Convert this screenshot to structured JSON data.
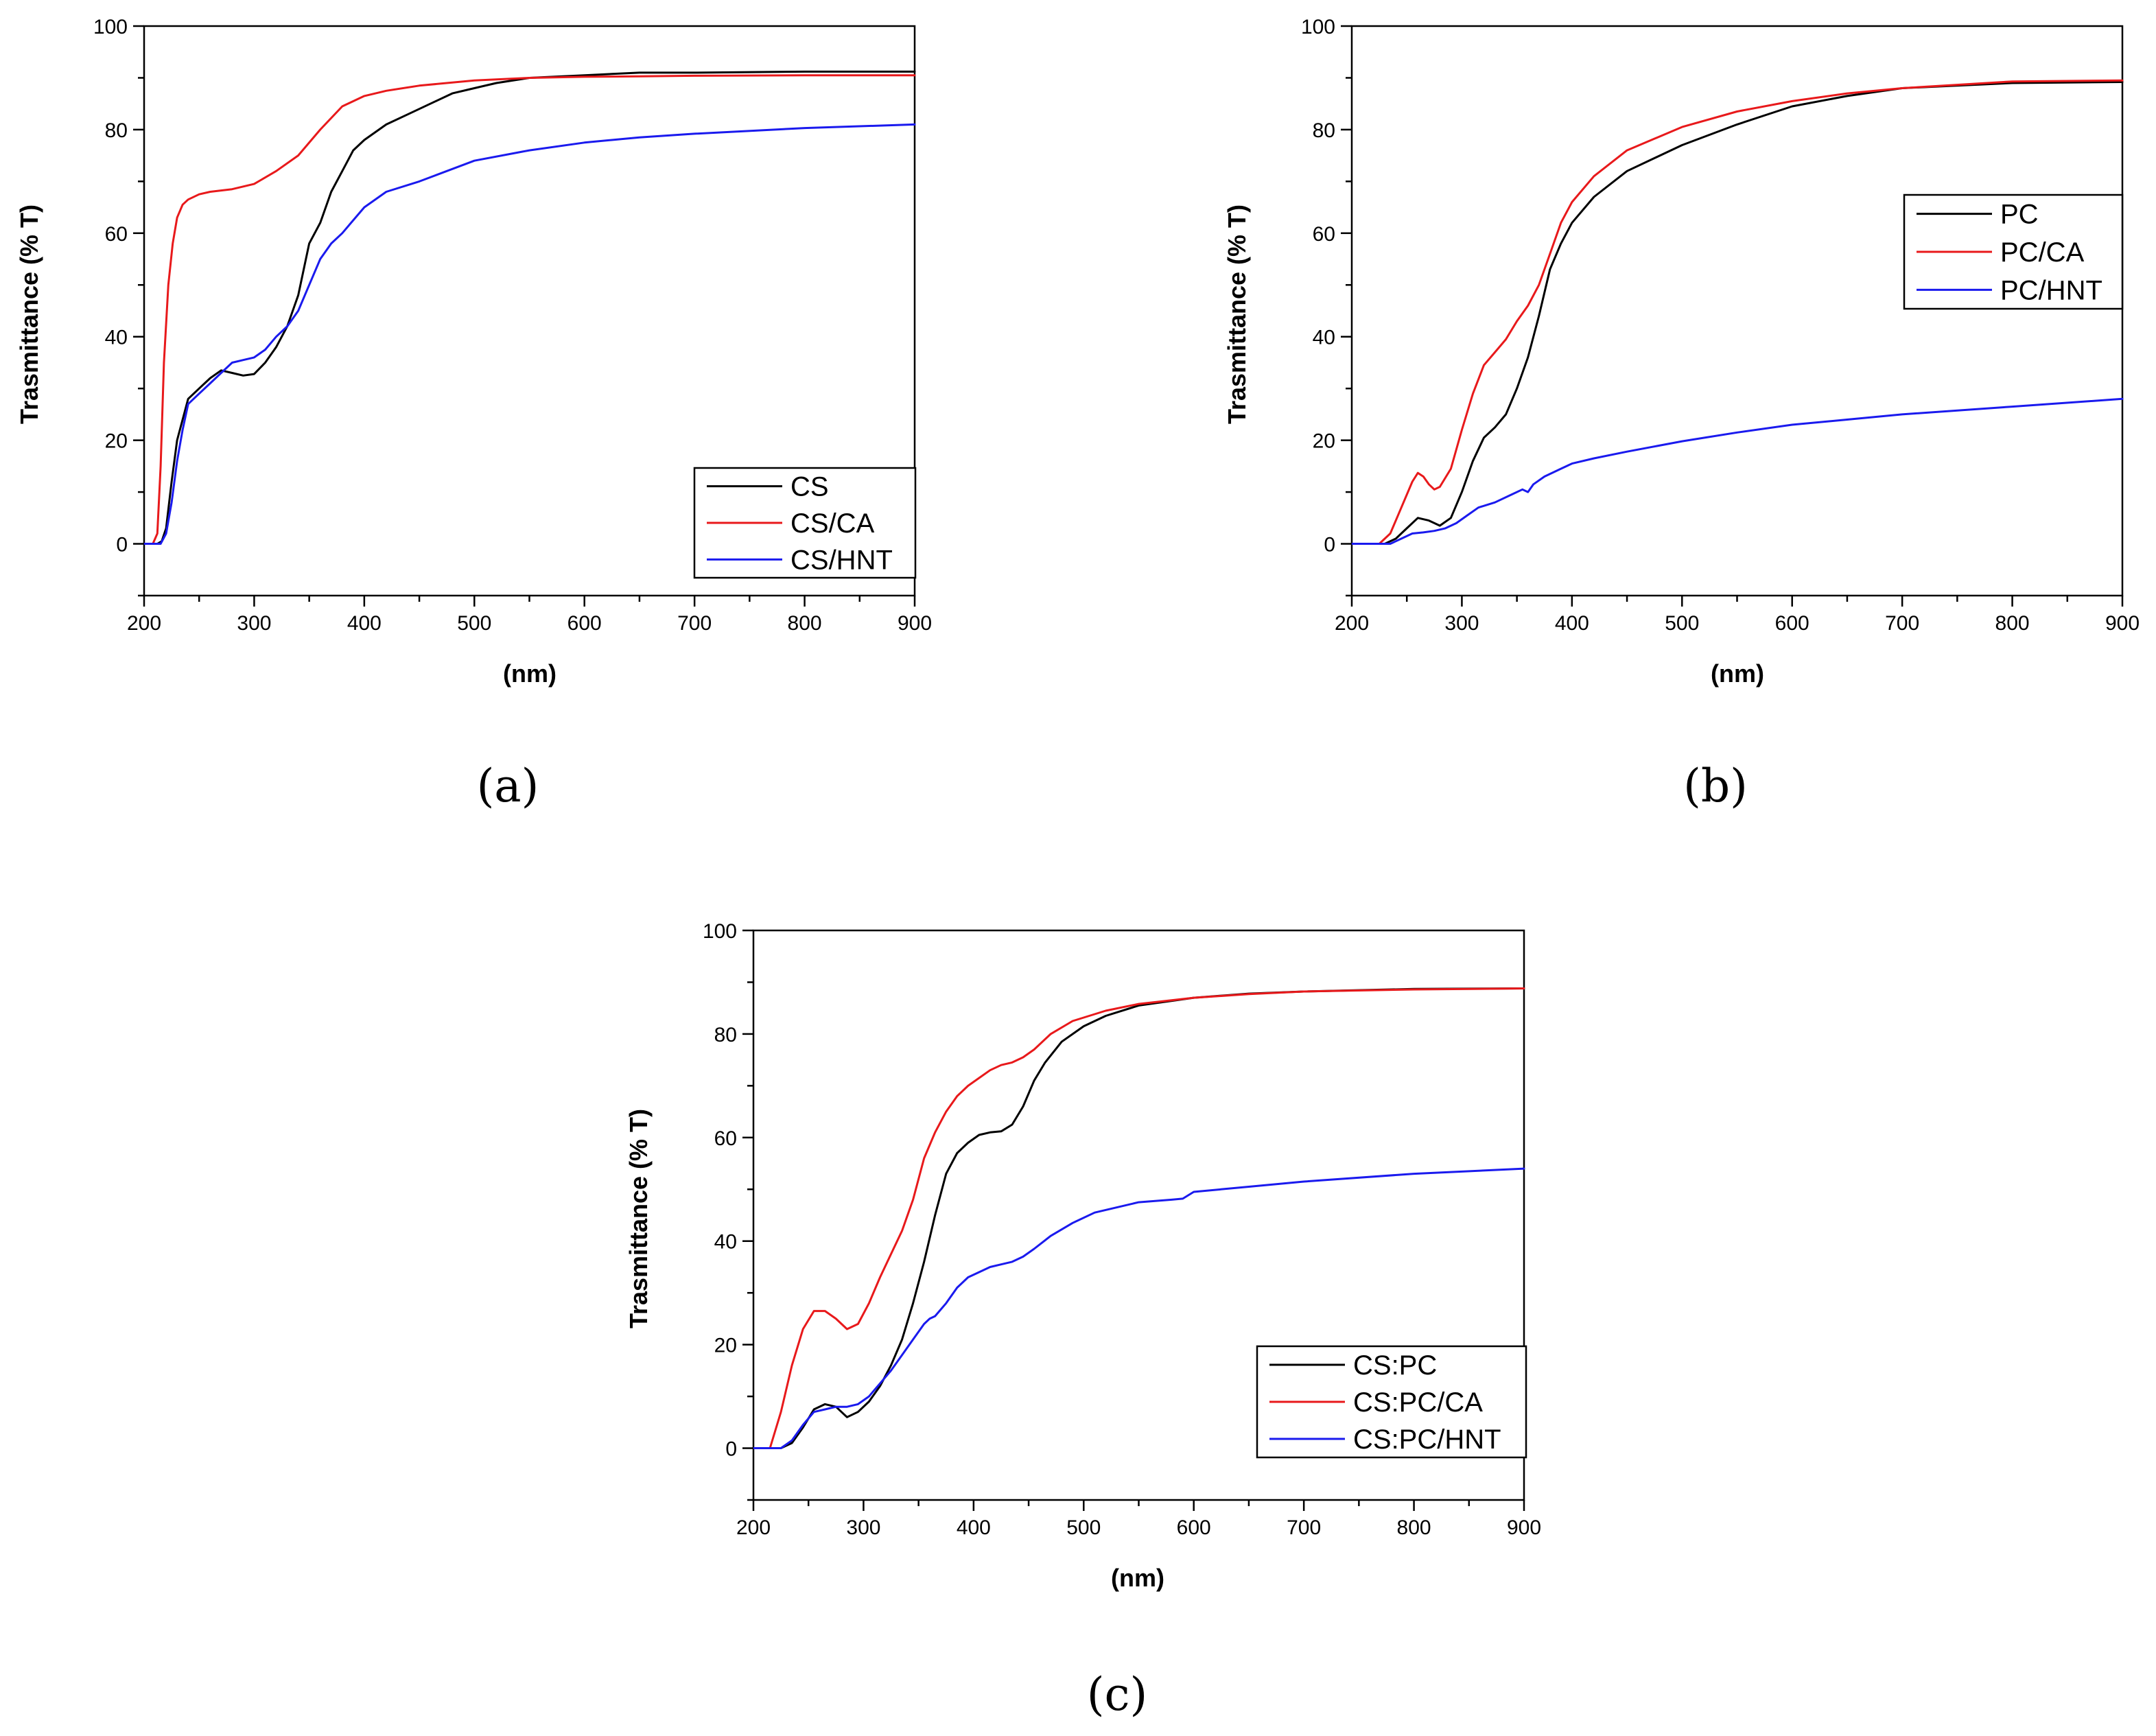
{
  "figure": {
    "panels": [
      "a",
      "b",
      "c"
    ]
  },
  "colors": {
    "black": "#000000",
    "red": "#e8191b",
    "blue": "#1a1aee"
  },
  "chart_data": [
    {
      "id": "a",
      "type": "line",
      "caption": "(a)",
      "xlabel": "(nm)",
      "ylabel": "Trasmittance (% T)",
      "xlim": [
        200,
        900
      ],
      "ylim": [
        -10,
        100
      ],
      "xticks": [
        "200",
        "300",
        "400",
        "500",
        "600",
        "700",
        "800",
        "900"
      ],
      "yticks": [
        "0",
        "20",
        "40",
        "60",
        "80",
        "100"
      ],
      "legend_position": "bottom-right",
      "series": [
        {
          "name": "CS",
          "color": "#000000",
          "x": [
            200,
            212,
            216,
            220,
            225,
            230,
            240,
            250,
            260,
            270,
            280,
            290,
            300,
            310,
            320,
            330,
            340,
            350,
            360,
            370,
            380,
            390,
            400,
            420,
            440,
            460,
            480,
            500,
            520,
            550,
            600,
            650,
            700,
            800,
            900
          ],
          "y": [
            0,
            0,
            0.5,
            3,
            12,
            20,
            28,
            30,
            32,
            33.5,
            33,
            32.5,
            32.8,
            35,
            38,
            42,
            48,
            58,
            62,
            68,
            72,
            76,
            78,
            81,
            83,
            85,
            87,
            88,
            89,
            90,
            90.5,
            91,
            91,
            91.2,
            91.2
          ]
        },
        {
          "name": "CS/CA",
          "color": "#e8191b",
          "x": [
            200,
            208,
            212,
            215,
            218,
            222,
            226,
            230,
            235,
            240,
            250,
            260,
            280,
            300,
            320,
            340,
            360,
            380,
            400,
            420,
            450,
            500,
            550,
            600,
            650,
            700,
            800,
            900
          ],
          "y": [
            0,
            0,
            2,
            15,
            35,
            50,
            58,
            63,
            65.5,
            66.5,
            67.5,
            68,
            68.5,
            69.5,
            72,
            75,
            80,
            84.5,
            86.5,
            87.5,
            88.5,
            89.5,
            90,
            90.2,
            90.3,
            90.4,
            90.5,
            90.5
          ]
        },
        {
          "name": "CS/HNT",
          "color": "#1a1aee",
          "x": [
            200,
            215,
            220,
            225,
            230,
            235,
            240,
            250,
            260,
            270,
            280,
            290,
            300,
            310,
            320,
            330,
            340,
            350,
            360,
            370,
            380,
            400,
            420,
            450,
            500,
            550,
            600,
            650,
            700,
            800,
            900
          ],
          "y": [
            0,
            0,
            2,
            8,
            16,
            22,
            27,
            29,
            31,
            33,
            35,
            35.5,
            36,
            37.5,
            40,
            42,
            45,
            50,
            55,
            58,
            60,
            65,
            68,
            70,
            74,
            76,
            77.5,
            78.5,
            79.2,
            80.3,
            81
          ]
        }
      ]
    },
    {
      "id": "b",
      "type": "line",
      "caption": "(b)",
      "xlabel": "(nm)",
      "ylabel": "Trasmittance (% T)",
      "xlim": [
        200,
        900
      ],
      "ylim": [
        -10,
        100
      ],
      "xticks": [
        "200",
        "300",
        "400",
        "500",
        "600",
        "700",
        "800",
        "900"
      ],
      "yticks": [
        "0",
        "20",
        "40",
        "60",
        "80",
        "100"
      ],
      "legend_position": "top-right",
      "series": [
        {
          "name": "PC",
          "color": "#000000",
          "x": [
            200,
            230,
            240,
            250,
            260,
            270,
            280,
            290,
            300,
            310,
            320,
            330,
            340,
            350,
            360,
            370,
            380,
            390,
            400,
            420,
            450,
            500,
            550,
            600,
            650,
            700,
            800,
            900
          ],
          "y": [
            0,
            0,
            1,
            3,
            5,
            4.5,
            3.5,
            5,
            10,
            16,
            20.5,
            22.5,
            25,
            30,
            36,
            44,
            53,
            58,
            62,
            67,
            72,
            77,
            81,
            84.5,
            86.5,
            88,
            89,
            89.2
          ]
        },
        {
          "name": "PC/CA",
          "color": "#e8191b",
          "x": [
            200,
            225,
            235,
            245,
            255,
            260,
            265,
            270,
            275,
            280,
            290,
            300,
            310,
            320,
            330,
            340,
            350,
            360,
            370,
            380,
            390,
            400,
            420,
            450,
            500,
            550,
            600,
            650,
            700,
            800,
            900
          ],
          "y": [
            0,
            0,
            2,
            7,
            12,
            13.7,
            13,
            11.5,
            10.5,
            11,
            14.5,
            22,
            29,
            34.5,
            37,
            39.5,
            43,
            46,
            50,
            56,
            62,
            66,
            71,
            76,
            80.5,
            83.5,
            85.5,
            87,
            88,
            89.3,
            89.5
          ]
        },
        {
          "name": "PC/HNT",
          "color": "#1a1aee",
          "x": [
            200,
            235,
            245,
            255,
            265,
            275,
            285,
            295,
            305,
            315,
            330,
            345,
            355,
            360,
            365,
            375,
            390,
            400,
            420,
            450,
            500,
            550,
            600,
            650,
            700,
            800,
            900
          ],
          "y": [
            0,
            0,
            1,
            2,
            2.2,
            2.5,
            3,
            4,
            5.5,
            7,
            8,
            9.5,
            10.5,
            10,
            11.5,
            13,
            14.5,
            15.5,
            16.5,
            17.8,
            19.8,
            21.5,
            23,
            24,
            25,
            26.5,
            28
          ]
        }
      ]
    },
    {
      "id": "c",
      "type": "line",
      "caption": "(c)",
      "xlabel": "(nm)",
      "ylabel": "Trasmittance (% T)",
      "xlim": [
        200,
        900
      ],
      "ylim": [
        -10,
        100
      ],
      "xticks": [
        "200",
        "300",
        "400",
        "500",
        "600",
        "700",
        "800",
        "900"
      ],
      "yticks": [
        "0",
        "20",
        "40",
        "60",
        "80",
        "100"
      ],
      "legend_position": "bottom-right",
      "series": [
        {
          "name": "CS:PC",
          "color": "#000000",
          "x": [
            200,
            225,
            235,
            245,
            255,
            265,
            275,
            285,
            295,
            305,
            315,
            325,
            335,
            345,
            355,
            365,
            375,
            385,
            395,
            405,
            415,
            425,
            435,
            445,
            455,
            465,
            480,
            500,
            520,
            550,
            600,
            650,
            700,
            800,
            900
          ],
          "y": [
            0,
            0,
            1,
            4,
            7.5,
            8.5,
            8,
            6,
            7,
            9,
            12,
            16,
            21,
            28,
            36,
            45,
            53,
            57,
            59,
            60.5,
            61,
            61.2,
            62.5,
            66,
            71,
            74.5,
            78.5,
            81.5,
            83.5,
            85.5,
            87,
            87.8,
            88.2,
            88.7,
            88.8
          ]
        },
        {
          "name": "CS:PC/CA",
          "color": "#e8191b",
          "x": [
            200,
            215,
            225,
            235,
            245,
            255,
            265,
            275,
            285,
            295,
            305,
            315,
            325,
            335,
            345,
            355,
            365,
            375,
            385,
            395,
            405,
            415,
            425,
            435,
            445,
            455,
            470,
            490,
            520,
            550,
            600,
            650,
            700,
            800,
            900
          ],
          "y": [
            0,
            0,
            7,
            16,
            23,
            26.5,
            26.5,
            25,
            23,
            24,
            28,
            33,
            37.5,
            42,
            48,
            56,
            61,
            65,
            68,
            70,
            71.5,
            73,
            74,
            74.5,
            75.5,
            77,
            80,
            82.5,
            84.5,
            85.8,
            87,
            87.7,
            88.2,
            88.6,
            88.8
          ]
        },
        {
          "name": "CS:PC/HNT",
          "color": "#1a1aee",
          "x": [
            200,
            225,
            235,
            245,
            255,
            265,
            275,
            285,
            295,
            305,
            315,
            325,
            335,
            345,
            355,
            360,
            365,
            375,
            385,
            395,
            405,
            415,
            425,
            435,
            445,
            455,
            470,
            490,
            510,
            550,
            580,
            590,
            600,
            650,
            700,
            800,
            900
          ],
          "y": [
            0,
            0,
            1.5,
            4.5,
            7,
            7.5,
            8,
            8,
            8.5,
            10,
            12.5,
            15,
            18,
            21,
            24,
            25,
            25.5,
            28,
            31,
            33,
            34,
            35,
            35.5,
            36,
            37,
            38.5,
            41,
            43.5,
            45.5,
            47.5,
            48,
            48.2,
            49.5,
            50.5,
            51.5,
            53,
            54
          ]
        }
      ]
    }
  ]
}
